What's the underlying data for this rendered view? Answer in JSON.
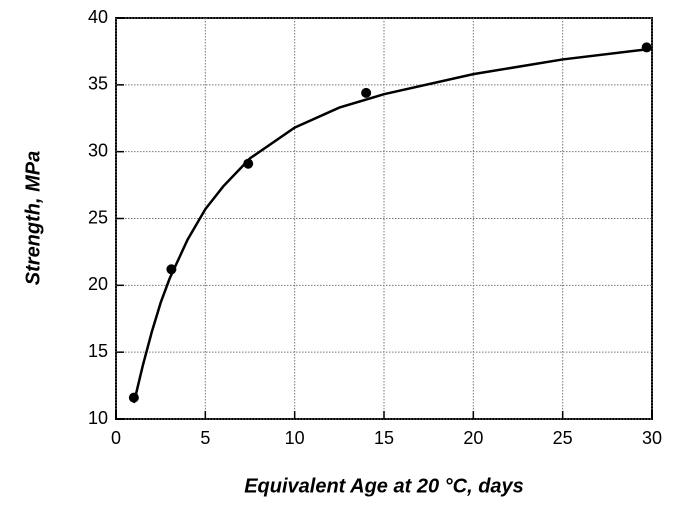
{
  "chart_data": {
    "type": "scatter",
    "x_label": "Equivalent Age at 20 °C, days",
    "y_label": "Strength, MPa",
    "xlim": [
      0,
      30
    ],
    "xticks": [
      0,
      5,
      10,
      15,
      20,
      25,
      30
    ],
    "ylim": [
      10,
      40
    ],
    "yticks": [
      10,
      15,
      20,
      25,
      30,
      35,
      40
    ],
    "grid": true,
    "series": [
      {
        "type": "scatter",
        "color": "#000000",
        "x": [
          1.0,
          3.1,
          7.4,
          14.0,
          29.7
        ],
        "values": [
          11.6,
          21.2,
          29.1,
          34.4,
          37.8
        ]
      },
      {
        "type": "line",
        "color": "#000000",
        "x": [
          1.0,
          1.5,
          2.0,
          2.5,
          3.0,
          4.0,
          5.0,
          6.0,
          7.5,
          10.0,
          12.5,
          15.0,
          20.0,
          25.0,
          30.0
        ],
        "values": [
          11.2,
          14.0,
          16.5,
          18.7,
          20.5,
          23.4,
          25.7,
          27.4,
          29.5,
          31.8,
          33.3,
          34.3,
          35.8,
          36.9,
          37.7
        ]
      }
    ]
  }
}
